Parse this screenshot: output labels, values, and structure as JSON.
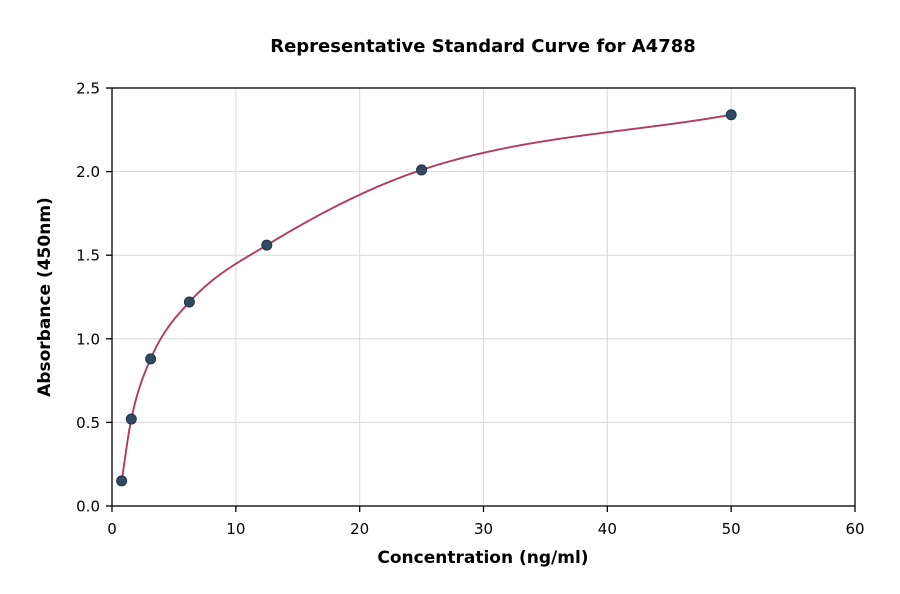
{
  "chart_data": {
    "type": "scatter",
    "title": "Representative Standard Curve for A4788",
    "xlabel": "Concentration (ng/ml)",
    "ylabel": "Absorbance (450nm)",
    "xlim": [
      0,
      60
    ],
    "ylim": [
      0,
      2.5
    ],
    "xticks": [
      0,
      10,
      20,
      30,
      40,
      50,
      60
    ],
    "xtick_labels": [
      "0",
      "10",
      "20",
      "30",
      "40",
      "50",
      "60"
    ],
    "yticks": [
      0,
      0.5,
      1,
      1.5,
      2,
      2.5
    ],
    "ytick_labels": [
      "0.0",
      "0.5",
      "1.0",
      "1.5",
      "2.0",
      "2.5"
    ],
    "grid": true,
    "legend": "none",
    "points": {
      "x": [
        0.78,
        1.56,
        3.12,
        6.25,
        12.5,
        25,
        50
      ],
      "y": [
        0.15,
        0.52,
        0.88,
        1.22,
        1.56,
        2.01,
        2.34
      ]
    },
    "fit": "smooth curve through points (4PL-style standard curve)",
    "colors": {
      "curve": "#b23a60",
      "point": "#2f4a62",
      "point_edge": "#1f3346",
      "grid": "#d9d9d9",
      "axis": "#000000",
      "background": "#ffffff"
    }
  }
}
